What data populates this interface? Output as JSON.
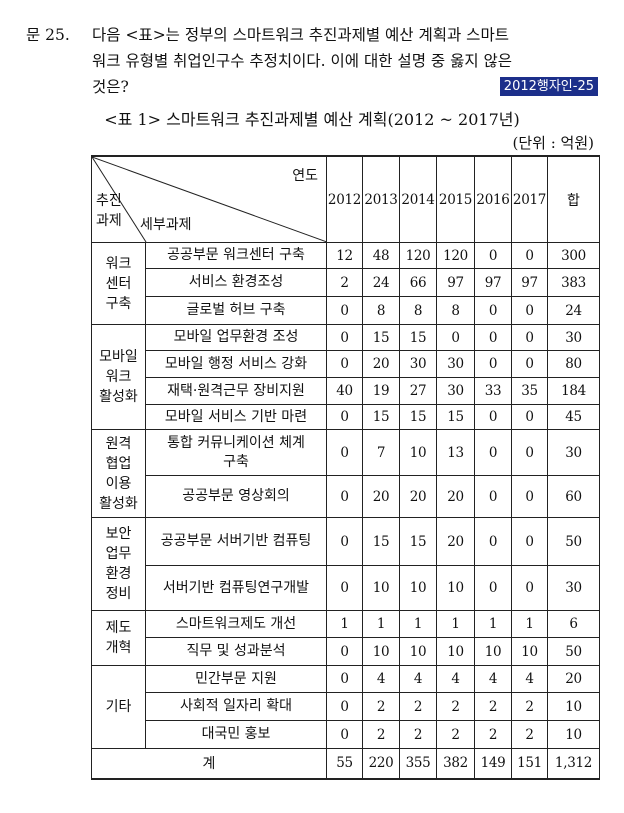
{
  "question": {
    "number": "문 25.",
    "line1": "다음 <표>는 정부의 스마트워크 추진과제별 예산 계획과 스마트",
    "line2": "워크 유형별 취업인구수 추정치이다. 이에 대한 설명 중 옳지 않은",
    "line3": "것은?",
    "source_badge": "2012행자인-25"
  },
  "table": {
    "caption": "<표 1> 스마트워크 추진과제별 예산 계획(2012 ~ 2017년)",
    "unit": "(단위 : 억원)",
    "header": {
      "year_label": "연도",
      "category_label_1": "추진",
      "category_label_2": "과제",
      "subtask_label": "세부과제",
      "years": [
        "2012",
        "2013",
        "2014",
        "2015",
        "2016",
        "2017"
      ],
      "total_label": "합"
    },
    "groups": [
      {
        "category": "워크\n센터\n구축",
        "rows": [
          {
            "task": "공공부문 워크센터 구축",
            "values": [
              "12",
              "48",
              "120",
              "120",
              "0",
              "0",
              "300"
            ]
          },
          {
            "task": "서비스 환경조성",
            "values": [
              "2",
              "24",
              "66",
              "97",
              "97",
              "97",
              "383"
            ]
          },
          {
            "task": "글로벌 허브 구축",
            "values": [
              "0",
              "8",
              "8",
              "8",
              "0",
              "0",
              "24"
            ]
          }
        ]
      },
      {
        "category": "모바일\n워크\n활성화",
        "rows": [
          {
            "task": "모바일 업무환경 조성",
            "values": [
              "0",
              "15",
              "15",
              "0",
              "0",
              "0",
              "30"
            ]
          },
          {
            "task": "모바일 행정 서비스 강화",
            "values": [
              "0",
              "20",
              "30",
              "30",
              "0",
              "0",
              "80"
            ]
          },
          {
            "task": "재택·원격근무 장비지원",
            "values": [
              "40",
              "19",
              "27",
              "30",
              "33",
              "35",
              "184"
            ]
          },
          {
            "task": "모바일 서비스 기반 마련",
            "values": [
              "0",
              "15",
              "15",
              "15",
              "0",
              "0",
              "45"
            ]
          }
        ]
      },
      {
        "category": "원격\n협업\n이용\n활성화",
        "rows": [
          {
            "task": "통합 커뮤니케이션 체계\n구축",
            "values": [
              "0",
              "7",
              "10",
              "13",
              "0",
              "0",
              "30"
            ]
          },
          {
            "task": "공공부문 영상회의",
            "values": [
              "0",
              "20",
              "20",
              "20",
              "0",
              "0",
              "60"
            ]
          }
        ]
      },
      {
        "category": "보안\n업무\n환경\n정비",
        "rows": [
          {
            "task": "공공부문 서버기반 컴퓨팅",
            "values": [
              "0",
              "15",
              "15",
              "20",
              "0",
              "0",
              "50"
            ]
          },
          {
            "task": "서버기반 컴퓨팅연구개발",
            "values": [
              "0",
              "10",
              "10",
              "10",
              "0",
              "0",
              "30"
            ]
          }
        ]
      },
      {
        "category": "제도\n개혁",
        "rows": [
          {
            "task": "스마트워크제도 개선",
            "values": [
              "1",
              "1",
              "1",
              "1",
              "1",
              "1",
              "6"
            ]
          },
          {
            "task": "직무 및 성과분석",
            "values": [
              "0",
              "10",
              "10",
              "10",
              "10",
              "10",
              "50"
            ]
          }
        ]
      },
      {
        "category": "기타",
        "rows": [
          {
            "task": "민간부문 지원",
            "values": [
              "0",
              "4",
              "4",
              "4",
              "4",
              "4",
              "20"
            ]
          },
          {
            "task": "사회적 일자리 확대",
            "values": [
              "0",
              "2",
              "2",
              "2",
              "2",
              "2",
              "10"
            ]
          },
          {
            "task": "대국민 홍보",
            "values": [
              "0",
              "2",
              "2",
              "2",
              "2",
              "2",
              "10"
            ]
          }
        ]
      }
    ],
    "total_row": {
      "label": "계",
      "values": [
        "55",
        "220",
        "355",
        "382",
        "149",
        "151",
        "1,312"
      ]
    }
  }
}
